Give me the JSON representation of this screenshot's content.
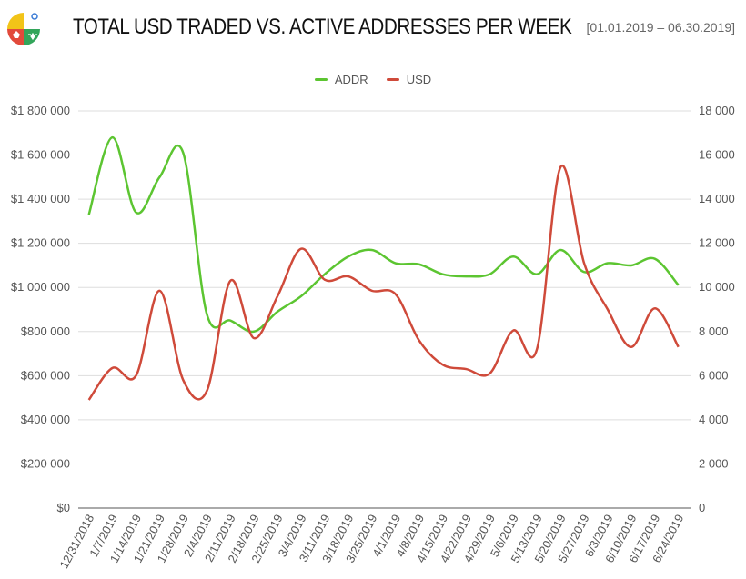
{
  "header": {
    "title": "TOTAL USD TRADED VS. ACTIVE ADDRESSES PER WEEK",
    "date_range": "[01.01.2019 – 06.30.2019]"
  },
  "colors": {
    "addr": "#5cc531",
    "usd": "#cf4a3a",
    "grid": "#dddddd"
  },
  "chart_data": {
    "type": "line",
    "title": "TOTAL USD TRADED VS. ACTIVE ADDRESSES PER WEEK",
    "categories": [
      "12/31/2018",
      "1/7/2019",
      "1/14/2019",
      "1/21/2019",
      "1/28/2019",
      "2/4/2019",
      "2/11/2019",
      "2/18/2019",
      "2/25/2019",
      "3/4/2019",
      "3/11/2019",
      "3/18/2019",
      "3/25/2019",
      "4/1/2019",
      "4/8/2019",
      "4/15/2019",
      "4/22/2019",
      "4/29/2019",
      "5/6/2019",
      "5/13/2019",
      "5/20/2019",
      "5/27/2019",
      "6/3/2019",
      "6/10/2019",
      "6/17/2019",
      "6/24/2019"
    ],
    "series": [
      {
        "name": "ADDR",
        "axis": "right",
        "values": [
          13300,
          16800,
          13400,
          15000,
          16100,
          8800,
          8500,
          8000,
          8900,
          9600,
          10600,
          11400,
          11700,
          11100,
          11050,
          10600,
          10500,
          10600,
          11400,
          10600,
          11700,
          10700,
          11100,
          11000,
          11300,
          10100
        ]
      },
      {
        "name": "USD",
        "axis": "left",
        "values": [
          490000,
          635000,
          600000,
          985000,
          580000,
          530000,
          1030000,
          770000,
          960000,
          1175000,
          1035000,
          1050000,
          985000,
          970000,
          760000,
          650000,
          630000,
          610000,
          805000,
          720000,
          1545000,
          1110000,
          900000,
          730000,
          905000,
          730000
        ]
      }
    ],
    "y_left": {
      "min": 0,
      "max": 1800000,
      "ticks": [
        "$0",
        "$200 000",
        "$400 000",
        "$600 000",
        "$800 000",
        "$1 000 000",
        "$1 200 000",
        "$1 400 000",
        "$1 600 000",
        "$1 800 000"
      ]
    },
    "y_right": {
      "min": 0,
      "max": 18000,
      "ticks": [
        "0",
        "2 000",
        "4 000",
        "6 000",
        "8 000",
        "10 000",
        "12 000",
        "14 000",
        "16 000",
        "18 000"
      ]
    },
    "grid": true,
    "legend_position": "top-center"
  }
}
